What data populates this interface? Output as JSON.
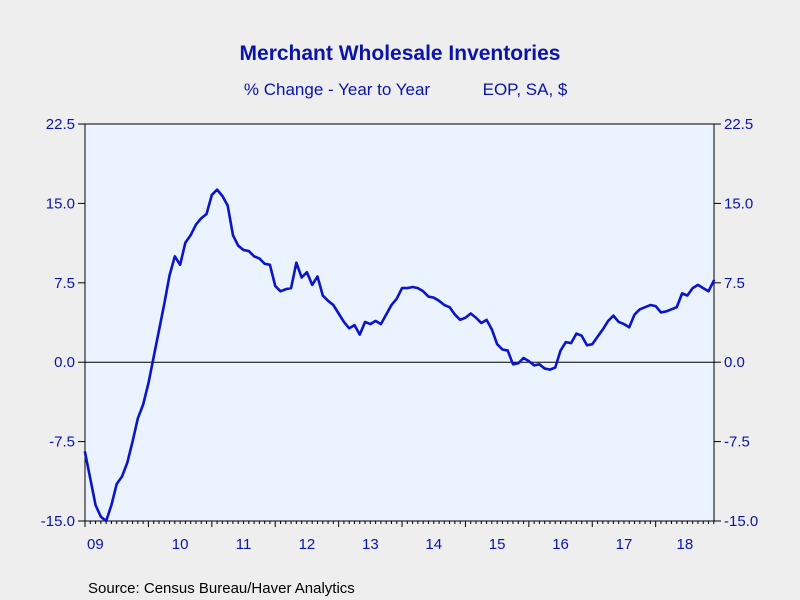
{
  "chart_data": {
    "type": "line",
    "title": "Merchant Wholesale Inventories",
    "subtitle_left": "% Change - Year to Year",
    "subtitle_right": "EOP, SA, $",
    "source": "Source:  Census Bureau/Haver Analytics",
    "ylim": [
      -15,
      22.5
    ],
    "y_ticks": [
      22.5,
      15.0,
      7.5,
      0.0,
      -7.5,
      -15.0
    ],
    "y_tick_labels": [
      "22.5",
      "15.0",
      "7.5",
      "0.0",
      "-7.5",
      "-15.0"
    ],
    "x_range": [
      2009.0,
      2018.92
    ],
    "x_tick_labels": [
      {
        "label": "09",
        "year": 2009
      },
      {
        "label": "10",
        "year": 2010
      },
      {
        "label": "11",
        "year": 2011
      },
      {
        "label": "12",
        "year": 2012
      },
      {
        "label": "13",
        "year": 2013
      },
      {
        "label": "14",
        "year": 2014
      },
      {
        "label": "15",
        "year": 2015
      },
      {
        "label": "16",
        "year": 2016
      },
      {
        "label": "17",
        "year": 2017
      },
      {
        "label": "18",
        "year": 2018
      }
    ],
    "grid": false,
    "zero_line": true,
    "series": [
      {
        "color": "#0a14c8",
        "x": [
          "2009-01",
          "2009-02",
          "2009-03",
          "2009-04",
          "2009-05",
          "2009-06",
          "2009-07",
          "2009-08",
          "2009-09",
          "2009-10",
          "2009-11",
          "2009-12",
          "2010-01",
          "2010-02",
          "2010-03",
          "2010-04",
          "2010-05",
          "2010-06",
          "2010-07",
          "2010-08",
          "2010-09",
          "2010-10",
          "2010-11",
          "2010-12",
          "2011-01",
          "2011-02",
          "2011-03",
          "2011-04",
          "2011-05",
          "2011-06",
          "2011-07",
          "2011-08",
          "2011-09",
          "2011-10",
          "2011-11",
          "2011-12",
          "2012-01",
          "2012-02",
          "2012-03",
          "2012-04",
          "2012-05",
          "2012-06",
          "2012-07",
          "2012-08",
          "2012-09",
          "2012-10",
          "2012-11",
          "2012-12",
          "2013-01",
          "2013-02",
          "2013-03",
          "2013-04",
          "2013-05",
          "2013-06",
          "2013-07",
          "2013-08",
          "2013-09",
          "2013-10",
          "2013-11",
          "2013-12",
          "2014-01",
          "2014-02",
          "2014-03",
          "2014-04",
          "2014-05",
          "2014-06",
          "2014-07",
          "2014-08",
          "2014-09",
          "2014-10",
          "2014-11",
          "2014-12",
          "2015-01",
          "2015-02",
          "2015-03",
          "2015-04",
          "2015-05",
          "2015-06",
          "2015-07",
          "2015-08",
          "2015-09",
          "2015-10",
          "2015-11",
          "2015-12",
          "2016-01",
          "2016-02",
          "2016-03",
          "2016-04",
          "2016-05",
          "2016-06",
          "2016-07",
          "2016-08",
          "2016-09",
          "2016-10",
          "2016-11",
          "2016-12",
          "2017-01",
          "2017-02",
          "2017-03",
          "2017-04",
          "2017-05",
          "2017-06",
          "2017-07",
          "2017-08",
          "2017-09",
          "2017-10",
          "2017-11",
          "2017-12",
          "2018-01",
          "2018-02",
          "2018-03",
          "2018-04",
          "2018-05",
          "2018-06",
          "2018-07",
          "2018-08",
          "2018-09",
          "2018-10",
          "2018-11",
          "2018-12"
        ],
        "values": [
          -8.5,
          -11.0,
          -13.5,
          -14.6,
          -15.0,
          -13.5,
          -11.5,
          -10.8,
          -9.5,
          -7.5,
          -5.3,
          -4.0,
          -2.0,
          0.5,
          3.0,
          5.5,
          8.2,
          10.0,
          9.2,
          11.3,
          12.0,
          13.0,
          13.6,
          14.0,
          15.8,
          16.3,
          15.7,
          14.8,
          12.0,
          11.0,
          10.6,
          10.5,
          10.0,
          9.8,
          9.3,
          9.2,
          7.2,
          6.7,
          6.9,
          7.0,
          9.4,
          8.0,
          8.5,
          7.3,
          8.1,
          6.3,
          5.8,
          5.4,
          4.6,
          3.8,
          3.2,
          3.5,
          2.6,
          3.8,
          3.6,
          3.9,
          3.6,
          4.5,
          5.4,
          6.0,
          7.0,
          7.0,
          7.1,
          7.0,
          6.7,
          6.2,
          6.1,
          5.8,
          5.4,
          5.2,
          4.5,
          4.0,
          4.2,
          4.6,
          4.2,
          3.7,
          4.0,
          3.1,
          1.7,
          1.2,
          1.1,
          -0.2,
          -0.1,
          0.4,
          0.1,
          -0.3,
          -0.2,
          -0.6,
          -0.7,
          -0.5,
          1.1,
          1.9,
          1.8,
          2.7,
          2.5,
          1.6,
          1.7,
          2.4,
          3.1,
          3.9,
          4.4,
          3.8,
          3.6,
          3.3,
          4.5,
          5.0,
          5.2,
          5.4,
          5.3,
          4.7,
          4.8,
          5.0,
          5.2,
          6.5,
          6.3,
          7.0,
          7.3,
          7.0,
          6.7,
          7.7
        ]
      }
    ]
  }
}
